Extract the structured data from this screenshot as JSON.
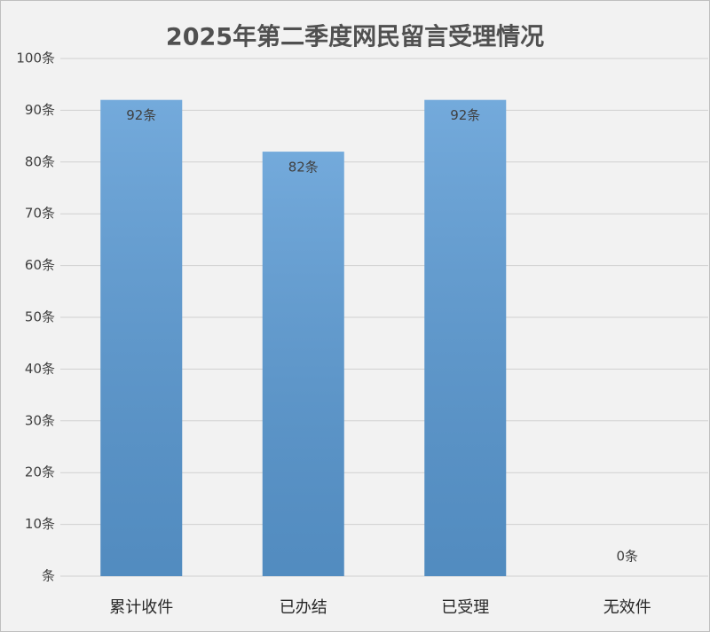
{
  "chart_data": {
    "type": "bar",
    "title": "2025年第二季度网民留言受理情况",
    "categories": [
      "累计收件",
      "已办结",
      "已受理",
      "无效件"
    ],
    "values": [
      92,
      82,
      92,
      0
    ],
    "value_labels": [
      "92条",
      "82条",
      "92条",
      "0条"
    ],
    "color": "#5b9bd5",
    "ylim": [
      0,
      100
    ],
    "yticks": [
      {
        "value": 0,
        "label": "条"
      },
      {
        "value": 10,
        "label": "10条"
      },
      {
        "value": 20,
        "label": "20条"
      },
      {
        "value": 30,
        "label": "30条"
      },
      {
        "value": 40,
        "label": "40条"
      },
      {
        "value": 50,
        "label": "50条"
      },
      {
        "value": 60,
        "label": "60条"
      },
      {
        "value": 70,
        "label": "70条"
      },
      {
        "value": 80,
        "label": "80条"
      },
      {
        "value": 90,
        "label": "90条"
      },
      {
        "value": 100,
        "label": "100条"
      }
    ],
    "grid": true
  }
}
